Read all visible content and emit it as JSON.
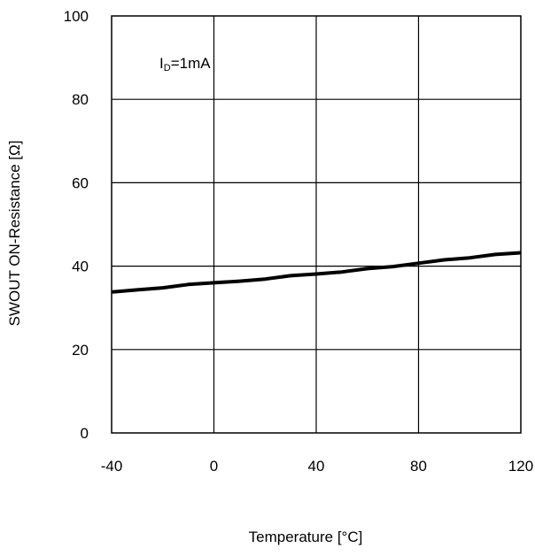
{
  "chart_data": {
    "type": "line",
    "xlabel": "Temperature [°C]",
    "ylabel": "SWOUT ON-Resistance [Ω]",
    "xlim": [
      -40,
      120
    ],
    "ylim": [
      0,
      100
    ],
    "x_ticks": [
      -40,
      0,
      40,
      80,
      120
    ],
    "y_ticks": [
      0,
      20,
      40,
      60,
      80,
      100
    ],
    "x_tick_labels": [
      "-40",
      "0",
      "40",
      "80",
      "120"
    ],
    "y_tick_labels": [
      "0",
      "20",
      "40",
      "60",
      "80",
      "100"
    ],
    "grid": true,
    "annotation": {
      "main": "I",
      "subscript": "D",
      "suffix": "=1mA"
    },
    "series": [
      {
        "x": [
          -40,
          -30,
          -20,
          -10,
          0,
          10,
          20,
          30,
          40,
          50,
          60,
          70,
          80,
          90,
          100,
          110,
          120
        ],
        "y": [
          33.8,
          34.3,
          34.8,
          35.6,
          36.0,
          36.4,
          36.9,
          37.7,
          38.1,
          38.6,
          39.4,
          39.9,
          40.7,
          41.5,
          42.0,
          42.8,
          43.2
        ]
      }
    ]
  }
}
